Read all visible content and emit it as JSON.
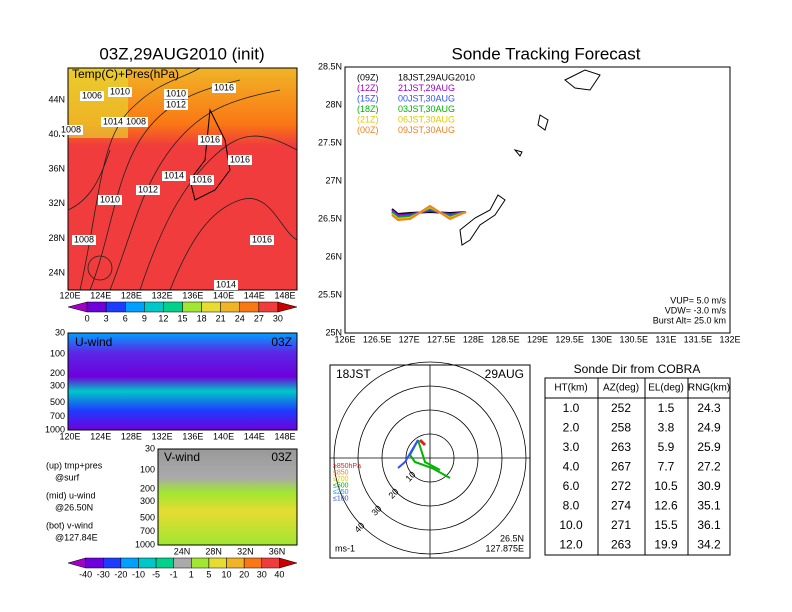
{
  "surface_map": {
    "title": "03Z,29AUG2010 (init)",
    "label": "Temp(C)+Pres(hPa)",
    "lat_labels": [
      "24N",
      "28N",
      "32N",
      "36N",
      "40N",
      "44N"
    ],
    "lon_labels": [
      "120E",
      "124E",
      "128E",
      "132E",
      "136E",
      "140E",
      "144E",
      "148E"
    ],
    "isobar_labels": [
      "1006",
      "1010",
      "1014",
      "1016",
      "1012",
      "1010",
      "1008",
      "1008",
      "1016",
      "1016",
      "1014",
      "1016",
      "1012",
      "1010",
      "1008",
      "1016",
      "1014"
    ],
    "colorbar_labels": [
      "0",
      "3",
      "6",
      "9",
      "12",
      "15",
      "18",
      "21",
      "24",
      "27",
      "30"
    ],
    "colorbar_colors": [
      "#a000c8",
      "#6e00dc",
      "#1e3cff",
      "#00a0ff",
      "#00c8c8",
      "#00d28c",
      "#a0e632",
      "#e6dc32",
      "#f0b428",
      "#fa7814",
      "#f03c3c",
      "#c80000"
    ]
  },
  "u_wind": {
    "label": "U-wind",
    "time": "03Z",
    "pressure_labels": [
      "30",
      "100",
      "200",
      "300",
      "500",
      "700",
      "1000"
    ],
    "lon_labels": [
      "120E",
      "124E",
      "128E",
      "132E",
      "136E",
      "140E",
      "144E",
      "148E"
    ]
  },
  "v_wind": {
    "label": "V-wind",
    "time": "03Z",
    "pressure_labels": [
      "30",
      "100",
      "200",
      "300",
      "500",
      "700",
      "1000"
    ],
    "lat_labels": [
      "24N",
      "28N",
      "32N",
      "36N"
    ],
    "colorbar_labels": [
      "-40",
      "-30",
      "-20",
      "-10",
      "-5",
      "-1",
      "1",
      "5",
      "10",
      "20",
      "30",
      "40"
    ],
    "colorbar_colors": [
      "#a000c8",
      "#6e00dc",
      "#1e3cff",
      "#00a0ff",
      "#00c8c8",
      "#00d28c",
      "#aaaaaa",
      "#a0e632",
      "#e6dc32",
      "#f0b428",
      "#fa7814",
      "#f03c3c",
      "#c80000"
    ]
  },
  "notes": [
    "(up) tmp+pres",
    "@surf",
    "(mid) u-wind",
    "@26.50N",
    "(bot) v-wind",
    "@127.84E"
  ],
  "track_map": {
    "title": "Sonde Tracking Forecast",
    "lat_labels": [
      "28.5N",
      "28N",
      "27.5N",
      "27N",
      "26.5N",
      "26N",
      "25.5N",
      "25N"
    ],
    "lon_labels": [
      "126E",
      "126.5E",
      "127E",
      "127.5E",
      "128E",
      "128.5E",
      "129E",
      "129.5E",
      "130E",
      "130.5E",
      "131E",
      "131.5E",
      "132E"
    ],
    "entries": [
      {
        "code": "(09Z)",
        "time": "18JST,29AUG2010",
        "color": "#000000"
      },
      {
        "code": "(12Z)",
        "time": "21JST,29AUG",
        "color": "#a000c8"
      },
      {
        "code": "(15Z)",
        "time": "00JST,30AUG",
        "color": "#3050ff"
      },
      {
        "code": "(18Z)",
        "time": "03JST,30AUG",
        "color": "#00b400"
      },
      {
        "code": "(21Z)",
        "time": "06JST,30AUG",
        "color": "#e6c800"
      },
      {
        "code": "(00Z)",
        "time": "09JST,30AUG",
        "color": "#f08020"
      }
    ],
    "info": [
      "VUP= 5.0 m/s",
      "VDW= -3.0 m/s",
      "Burst Alt= 25.0 km"
    ]
  },
  "hodograph": {
    "time": "18JST",
    "date": "29AUG",
    "lat": "26.5N",
    "lon": "127.875E",
    "unit": "ms-1",
    "rings": [
      "10",
      "20",
      "30",
      "40"
    ],
    "levels": [
      {
        "label": "≥850hPa",
        "color": "#e02020"
      },
      {
        "label": "≤850",
        "color": "#f08020"
      },
      {
        "label": "≤700",
        "color": "#e6c800"
      },
      {
        "label": "≤500",
        "color": "#00b400"
      },
      {
        "label": "≤250",
        "color": "#00a0ff"
      },
      {
        "label": "≤100",
        "color": "#3050ff"
      }
    ]
  },
  "table": {
    "title": "Sonde Dir from COBRA",
    "header": [
      "HT(km)",
      "AZ(deg)",
      "EL(deg)",
      "RNG(km)"
    ],
    "rows": [
      [
        "1.0",
        "252",
        "1.5",
        "24.3"
      ],
      [
        "2.0",
        "258",
        "3.8",
        "24.9"
      ],
      [
        "3.0",
        "263",
        "5.9",
        "25.9"
      ],
      [
        "4.0",
        "267",
        "7.7",
        "27.2"
      ],
      [
        "6.0",
        "272",
        "10.5",
        "30.9"
      ],
      [
        "8.0",
        "274",
        "12.6",
        "35.1"
      ],
      [
        "10.0",
        "271",
        "15.5",
        "36.1"
      ],
      [
        "12.0",
        "263",
        "19.9",
        "34.2"
      ]
    ]
  }
}
